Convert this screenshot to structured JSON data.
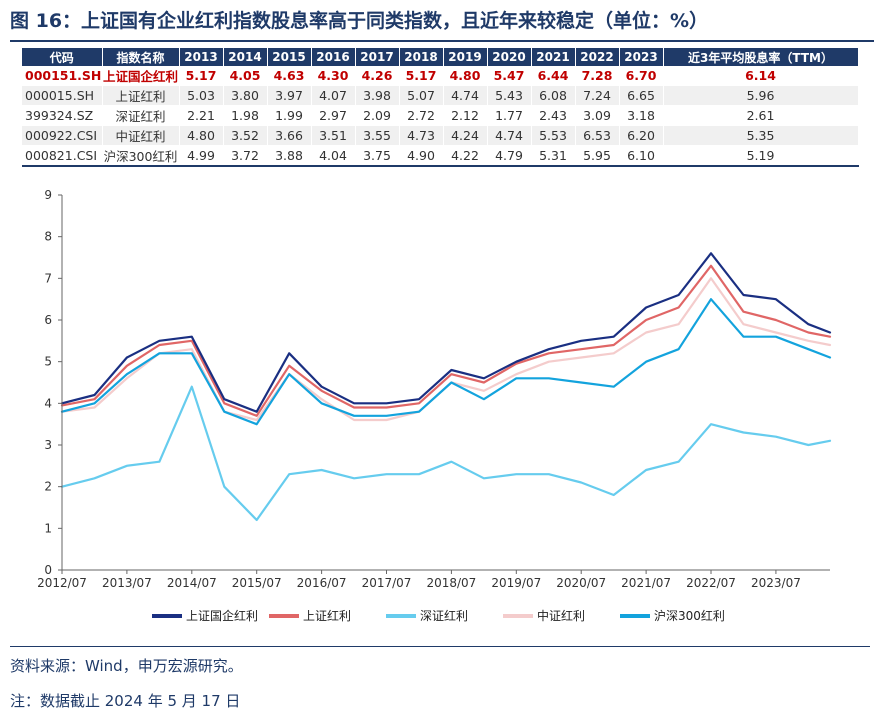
{
  "title": "图 16：上证国有企业红利指数股息率高于同类指数，且近年来较稳定（单位：%）",
  "table": {
    "headers": [
      "代码",
      "指数名称",
      "2013",
      "2014",
      "2015",
      "2016",
      "2017",
      "2018",
      "2019",
      "2020",
      "2021",
      "2022",
      "2023",
      "近3年平均股息率（TTM）"
    ],
    "rows": [
      {
        "code": "000151.SH",
        "name": "上证国企红利",
        "values": [
          "5.17",
          "4.05",
          "4.63",
          "4.30",
          "4.26",
          "5.17",
          "4.80",
          "5.47",
          "6.44",
          "7.28",
          "6.70"
        ],
        "avg": "6.14"
      },
      {
        "code": "000015.SH",
        "name": "上证红利",
        "values": [
          "5.03",
          "3.80",
          "3.97",
          "4.07",
          "3.98",
          "5.07",
          "4.74",
          "5.43",
          "6.08",
          "7.24",
          "6.65"
        ],
        "avg": "5.96"
      },
      {
        "code": "399324.SZ",
        "name": "深证红利",
        "values": [
          "2.21",
          "1.98",
          "1.99",
          "2.97",
          "2.09",
          "2.72",
          "2.12",
          "1.77",
          "2.43",
          "3.09",
          "3.18"
        ],
        "avg": "2.61"
      },
      {
        "code": "000922.CSI",
        "name": "中证红利",
        "values": [
          "4.80",
          "3.52",
          "3.66",
          "3.51",
          "3.55",
          "4.73",
          "4.24",
          "4.74",
          "5.53",
          "6.53",
          "6.20"
        ],
        "avg": "5.35"
      },
      {
        "code": "000821.CSI",
        "name": "沪深300红利",
        "values": [
          "4.99",
          "3.72",
          "3.88",
          "4.04",
          "3.75",
          "4.90",
          "4.22",
          "4.79",
          "5.31",
          "5.95",
          "6.10"
        ],
        "avg": "5.19"
      }
    ]
  },
  "chart_data": {
    "type": "line",
    "x": [
      "2012/07",
      "2013/01",
      "2013/07",
      "2014/01",
      "2014/07",
      "2015/01",
      "2015/07",
      "2016/01",
      "2016/07",
      "2017/01",
      "2017/07",
      "2018/01",
      "2018/07",
      "2019/01",
      "2019/07",
      "2020/01",
      "2020/07",
      "2021/01",
      "2021/07",
      "2022/01",
      "2022/07",
      "2023/01",
      "2023/07",
      "2024/01",
      "2024/05"
    ],
    "x_tick_labels": [
      "2012/07",
      "2013/07",
      "2014/07",
      "2015/07",
      "2016/07",
      "2017/07",
      "2018/07",
      "2019/07",
      "2020/07",
      "2021/07",
      "2022/07",
      "2023/07"
    ],
    "ylim": [
      0,
      9
    ],
    "y_ticks": [
      0,
      1,
      2,
      3,
      4,
      5,
      6,
      7,
      8,
      9
    ],
    "legend_position": "bottom",
    "series": [
      {
        "name": "上证国企红利",
        "color": "#1a2f82",
        "values": [
          4.0,
          4.2,
          5.1,
          5.5,
          5.6,
          4.1,
          3.8,
          5.2,
          4.4,
          4.0,
          4.0,
          4.1,
          4.8,
          4.6,
          5.0,
          5.3,
          5.5,
          5.6,
          6.3,
          6.6,
          7.6,
          6.6,
          6.5,
          5.9,
          5.7
        ]
      },
      {
        "name": "上证红利",
        "color": "#e06666",
        "values": [
          3.95,
          4.1,
          4.9,
          5.4,
          5.5,
          4.0,
          3.7,
          4.9,
          4.3,
          3.9,
          3.9,
          4.0,
          4.7,
          4.5,
          4.95,
          5.2,
          5.3,
          5.4,
          6.0,
          6.3,
          7.3,
          6.2,
          6.0,
          5.7,
          5.6
        ]
      },
      {
        "name": "深证红利",
        "color": "#66ccee",
        "values": [
          2.0,
          2.2,
          2.5,
          2.6,
          4.4,
          2.0,
          1.2,
          2.3,
          2.4,
          2.2,
          2.3,
          2.3,
          2.6,
          2.2,
          2.3,
          2.3,
          2.1,
          1.8,
          2.4,
          2.6,
          3.5,
          3.3,
          3.2,
          3.0,
          3.1
        ]
      },
      {
        "name": "中证红利",
        "color": "#f4cccc",
        "values": [
          3.8,
          3.9,
          4.6,
          5.2,
          5.3,
          3.8,
          3.6,
          4.7,
          4.1,
          3.6,
          3.6,
          3.8,
          4.5,
          4.3,
          4.7,
          5.0,
          5.1,
          5.2,
          5.7,
          5.9,
          7.0,
          5.9,
          5.7,
          5.5,
          5.4
        ]
      },
      {
        "name": "沪深300红利",
        "color": "#13a3dd",
        "values": [
          3.8,
          4.0,
          4.7,
          5.2,
          5.2,
          3.8,
          3.5,
          4.7,
          4.0,
          3.7,
          3.7,
          3.8,
          4.5,
          4.1,
          4.6,
          4.6,
          4.5,
          4.4,
          5.0,
          5.3,
          6.5,
          5.6,
          5.6,
          5.3,
          5.1
        ]
      }
    ]
  },
  "source": "资料来源：Wind，申万宏源研究。",
  "note": "注：数据截止 2024 年 5 月 17 日"
}
